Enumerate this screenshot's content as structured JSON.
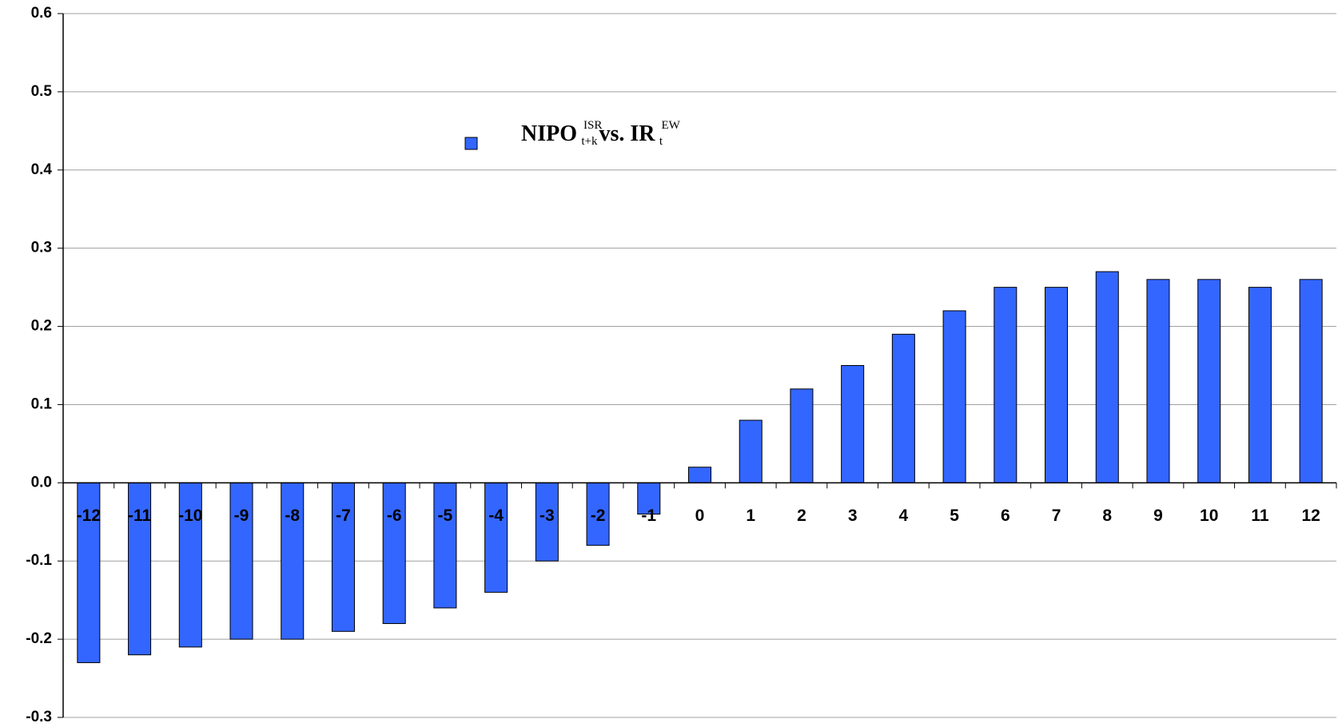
{
  "chart_data": {
    "type": "bar",
    "categories": [
      "-12",
      "-11",
      "-10",
      "-9",
      "-8",
      "-7",
      "-6",
      "-5",
      "-4",
      "-3",
      "-2",
      "-1",
      "0",
      "1",
      "2",
      "3",
      "4",
      "5",
      "6",
      "7",
      "8",
      "9",
      "10",
      "11",
      "12"
    ],
    "series": [
      {
        "name": [
          {
            "text": "NIPO"
          },
          {
            "text": "ISR",
            "script": "sup"
          },
          {
            "text": "t+k",
            "script": "sub"
          },
          {
            "text": "vs. IR"
          },
          {
            "text": "EW",
            "script": "sup"
          },
          {
            "text": "t",
            "script": "sub"
          }
        ],
        "color": "#3366ff",
        "values": [
          -0.23,
          -0.22,
          -0.21,
          -0.2,
          -0.2,
          -0.19,
          -0.18,
          -0.16,
          -0.14,
          -0.1,
          -0.08,
          -0.04,
          0.02,
          0.08,
          0.12,
          0.15,
          0.19,
          0.22,
          0.25,
          0.25,
          0.27,
          0.26,
          0.26,
          0.25,
          0.26
        ]
      }
    ],
    "ylim": [
      -0.3,
      0.6
    ],
    "yticks": [
      -0.3,
      -0.2,
      -0.1,
      {
        "value": 0,
        "label": "0.0"
      },
      0.1,
      0.2,
      0.3,
      0.4,
      0.5,
      0.6
    ],
    "grid": true
  }
}
